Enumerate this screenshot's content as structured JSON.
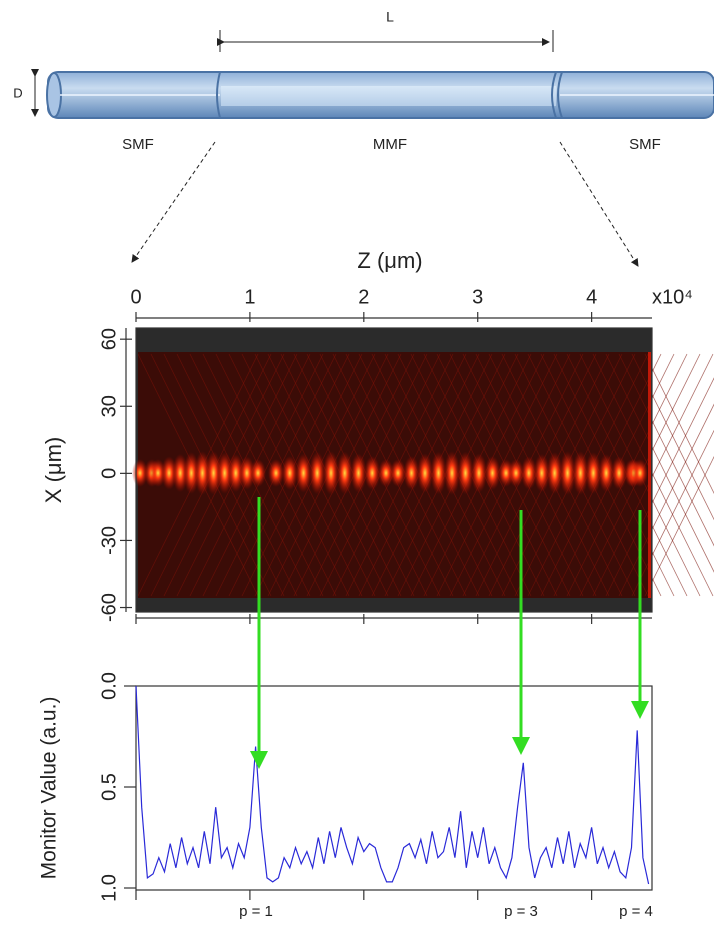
{
  "diagram": {
    "length_label": "L",
    "diameter_label": "D",
    "segments": [
      "SMF",
      "MMF",
      "SMF"
    ]
  },
  "chart_data": [
    {
      "type": "heatmap",
      "x_label": "Z (μm)",
      "x_multiplier": "x10⁴",
      "y_label": "X (μm)",
      "xlim": [
        0,
        4.53
      ],
      "xticks": [
        0,
        1,
        2,
        3,
        4
      ],
      "ylim": [
        -62,
        65
      ],
      "yticks": [
        60,
        30,
        0,
        -30,
        -60
      ]
    },
    {
      "type": "line",
      "y_label": "Monitor Value (a.u.)",
      "xlim": [
        0,
        4.53
      ],
      "ylim": [
        0,
        1
      ],
      "y_inverted": true,
      "yticks": [
        {
          "value": 0,
          "label": "0.0"
        },
        {
          "value": 0.5,
          "label": "0.5"
        },
        {
          "value": 1,
          "label": "1.0"
        }
      ],
      "x": [
        0,
        0.05,
        0.1,
        0.15,
        0.2,
        0.25,
        0.3,
        0.35,
        0.4,
        0.45,
        0.5,
        0.55,
        0.6,
        0.65,
        0.7,
        0.75,
        0.8,
        0.85,
        0.9,
        0.95,
        1,
        1.05,
        1.1,
        1.15,
        1.2,
        1.25,
        1.3,
        1.35,
        1.4,
        1.45,
        1.5,
        1.55,
        1.6,
        1.65,
        1.7,
        1.75,
        1.8,
        1.85,
        1.9,
        1.95,
        2,
        2.05,
        2.1,
        2.15,
        2.2,
        2.25,
        2.3,
        2.35,
        2.4,
        2.45,
        2.5,
        2.55,
        2.6,
        2.65,
        2.7,
        2.75,
        2.8,
        2.85,
        2.9,
        2.95,
        3,
        3.05,
        3.1,
        3.15,
        3.2,
        3.25,
        3.3,
        3.35,
        3.4,
        3.45,
        3.5,
        3.55,
        3.6,
        3.65,
        3.7,
        3.75,
        3.8,
        3.85,
        3.9,
        3.95,
        4,
        4.05,
        4.1,
        4.15,
        4.2,
        4.25,
        4.3,
        4.35,
        4.4,
        4.45,
        4.5
      ],
      "series": [
        {
          "color": "#2a2ad8",
          "values": [
            0,
            0.6,
            0.95,
            0.93,
            0.85,
            0.92,
            0.78,
            0.9,
            0.75,
            0.88,
            0.8,
            0.9,
            0.72,
            0.88,
            0.6,
            0.85,
            0.8,
            0.9,
            0.78,
            0.85,
            0.7,
            0.3,
            0.7,
            0.95,
            0.97,
            0.95,
            0.85,
            0.9,
            0.8,
            0.88,
            0.82,
            0.9,
            0.75,
            0.88,
            0.72,
            0.85,
            0.7,
            0.8,
            0.88,
            0.75,
            0.82,
            0.78,
            0.8,
            0.9,
            0.97,
            0.97,
            0.9,
            0.8,
            0.78,
            0.85,
            0.76,
            0.88,
            0.72,
            0.85,
            0.82,
            0.7,
            0.85,
            0.62,
            0.9,
            0.72,
            0.85,
            0.7,
            0.88,
            0.8,
            0.9,
            0.95,
            0.85,
            0.6,
            0.38,
            0.8,
            0.95,
            0.85,
            0.8,
            0.9,
            0.75,
            0.88,
            0.72,
            0.9,
            0.78,
            0.85,
            0.7,
            0.88,
            0.8,
            0.9,
            0.82,
            0.92,
            0.95,
            0.8,
            0.22,
            0.85,
            0.98
          ]
        }
      ],
      "annotations": [
        "p = 1",
        "p = 3",
        "p = 4"
      ]
    }
  ]
}
